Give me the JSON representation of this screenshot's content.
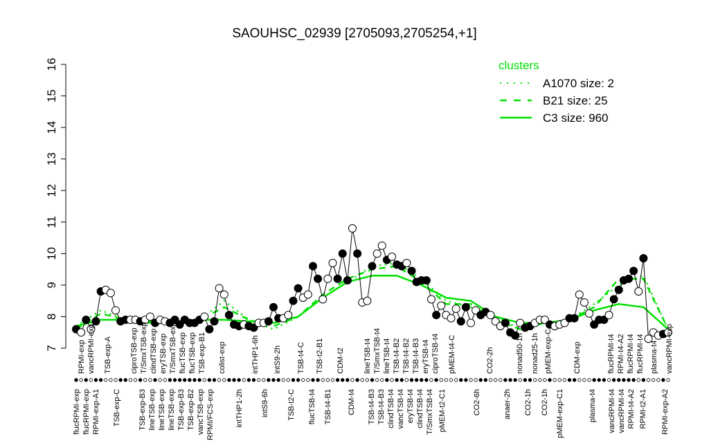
{
  "chart_data": {
    "type": "line",
    "title": "SAOUHSC_02939 [2705093,2705254,+1]",
    "xlabel": "",
    "ylabel": "",
    "ylim": [
      7,
      16
    ],
    "yticks": [
      "7",
      "8",
      "9",
      "10",
      "11",
      "12",
      "13",
      "14",
      "15",
      "16"
    ],
    "grid": false,
    "legend": {
      "title": "clusters",
      "placement": "top-right",
      "entries": [
        {
          "label": "A1070 size: 2",
          "style": "dotted"
        },
        {
          "label": "B21 size: 25",
          "style": "dashed"
        },
        {
          "label": "C3 size: 960",
          "style": "solid"
        }
      ]
    },
    "colors": {
      "cluster": "#00e000",
      "points": "#000000",
      "open": "#ffffff"
    },
    "points_note_fields": [
      "value",
      "filled"
    ],
    "points": [
      [
        7.6,
        1
      ],
      [
        7.5,
        0
      ],
      [
        7.9,
        1
      ],
      [
        7.6,
        0
      ],
      [
        7.85,
        1
      ],
      [
        8.8,
        1
      ],
      [
        8.85,
        0
      ],
      [
        8.75,
        0
      ],
      [
        8.2,
        0
      ],
      [
        7.85,
        1
      ],
      [
        7.9,
        1
      ],
      [
        7.9,
        0
      ],
      [
        7.9,
        0
      ],
      [
        7.85,
        1
      ],
      [
        7.9,
        0
      ],
      [
        8.0,
        0
      ],
      [
        7.8,
        1
      ],
      [
        7.9,
        0
      ],
      [
        7.85,
        0
      ],
      [
        7.8,
        1
      ],
      [
        7.9,
        1
      ],
      [
        7.75,
        1
      ],
      [
        7.9,
        1
      ],
      [
        7.8,
        1
      ],
      [
        7.8,
        1
      ],
      [
        7.9,
        1
      ],
      [
        8.0,
        0
      ],
      [
        7.6,
        1
      ],
      [
        7.85,
        1
      ],
      [
        8.9,
        0
      ],
      [
        8.7,
        0
      ],
      [
        8.05,
        1
      ],
      [
        7.75,
        1
      ],
      [
        7.7,
        1
      ],
      [
        7.75,
        0
      ],
      [
        7.7,
        1
      ],
      [
        7.65,
        1
      ],
      [
        7.8,
        0
      ],
      [
        7.8,
        0
      ],
      [
        7.85,
        1
      ],
      [
        8.3,
        1
      ],
      [
        7.95,
        1
      ],
      [
        7.95,
        0
      ],
      [
        8.05,
        0
      ],
      [
        8.5,
        1
      ],
      [
        8.9,
        1
      ],
      [
        8.6,
        0
      ],
      [
        8.7,
        0
      ],
      [
        9.6,
        1
      ],
      [
        9.2,
        1
      ],
      [
        8.55,
        0
      ],
      [
        9.2,
        0
      ],
      [
        9.7,
        0
      ],
      [
        9.2,
        1
      ],
      [
        10.0,
        1
      ],
      [
        9.15,
        1
      ],
      [
        10.8,
        0
      ],
      [
        10.0,
        1
      ],
      [
        8.45,
        0
      ],
      [
        8.5,
        0
      ],
      [
        9.6,
        1
      ],
      [
        10.0,
        0
      ],
      [
        10.25,
        0
      ],
      [
        9.8,
        1
      ],
      [
        9.9,
        0
      ],
      [
        9.65,
        1
      ],
      [
        9.6,
        1
      ],
      [
        9.7,
        0
      ],
      [
        9.45,
        1
      ],
      [
        9.1,
        1
      ],
      [
        9.15,
        1
      ],
      [
        9.15,
        1
      ],
      [
        8.55,
        0
      ],
      [
        8.05,
        1
      ],
      [
        8.35,
        0
      ],
      [
        8.05,
        0
      ],
      [
        7.95,
        0
      ],
      [
        8.25,
        0
      ],
      [
        7.85,
        1
      ],
      [
        8.3,
        1
      ],
      [
        7.8,
        0
      ],
      [
        8.2,
        0
      ],
      [
        8.05,
        1
      ],
      [
        8.15,
        1
      ],
      [
        8.05,
        0
      ],
      [
        7.85,
        0
      ],
      [
        7.7,
        0
      ],
      [
        7.8,
        1
      ],
      [
        7.5,
        1
      ],
      [
        7.4,
        1
      ],
      [
        7.8,
        0
      ],
      [
        7.65,
        1
      ],
      [
        7.7,
        1
      ],
      [
        7.8,
        0
      ],
      [
        7.9,
        0
      ],
      [
        7.9,
        0
      ],
      [
        7.75,
        1
      ],
      [
        7.7,
        0
      ],
      [
        7.75,
        0
      ],
      [
        7.8,
        0
      ],
      [
        7.95,
        1
      ],
      [
        7.95,
        1
      ],
      [
        8.7,
        0
      ],
      [
        8.45,
        0
      ],
      [
        8.1,
        0
      ],
      [
        7.75,
        1
      ],
      [
        7.9,
        1
      ],
      [
        7.9,
        1
      ],
      [
        8.05,
        0
      ],
      [
        8.55,
        1
      ],
      [
        8.85,
        1
      ],
      [
        9.15,
        1
      ],
      [
        9.2,
        1
      ],
      [
        9.45,
        1
      ],
      [
        8.8,
        0
      ],
      [
        9.85,
        1
      ],
      [
        7.3,
        0
      ],
      [
        7.5,
        0
      ],
      [
        7.4,
        0
      ],
      [
        7.45,
        1
      ],
      [
        7.5,
        0
      ]
    ],
    "series": [
      {
        "name": "C3 size: 960",
        "style": "solid",
        "values": [
          7.7,
          7.9,
          7.9,
          7.85,
          7.85,
          7.9,
          7.9,
          7.85,
          7.8,
          8.0,
          8.6,
          9.1,
          9.3,
          9.3,
          9.0,
          8.6,
          8.5,
          8.0,
          7.8,
          7.8,
          7.9,
          8.2,
          8.4,
          8.3,
          7.6
        ]
      },
      {
        "name": "B21 size: 25",
        "style": "dashed",
        "values": [
          7.6,
          8.1,
          7.9,
          7.8,
          7.8,
          7.9,
          8.3,
          7.9,
          7.7,
          8.0,
          8.7,
          9.2,
          9.5,
          9.6,
          9.1,
          8.4,
          8.4,
          7.9,
          7.6,
          7.8,
          7.9,
          8.3,
          9.2,
          9.2,
          7.6
        ]
      },
      {
        "name": "A1070 size: 2",
        "style": "dotted",
        "values": [
          7.7,
          8.2,
          7.9,
          7.8,
          7.8,
          7.9,
          8.5,
          7.9,
          7.6,
          8.0,
          8.6,
          9.1,
          9.6,
          9.7,
          9.2,
          8.5,
          8.3,
          8.0,
          7.6,
          7.8,
          7.9,
          8.4,
          9.0,
          9.3,
          7.6
        ]
      }
    ],
    "x_labels_top": [
      "RPMI-exp",
      "vancRPMI-exp",
      "TSB-exp-A",
      "ciproTSB-exp",
      "T/SmxTSB-exp",
      "clindTSB-exp",
      "eryTSB-exp",
      "T/SmxTSB-exp",
      "flucTSB-exp",
      "flucTSB-exp",
      "TSB-exp-B1",
      "colist-exp",
      "intTHP1-6h",
      "intS9-2h",
      "TSB-t4-C",
      "TSB-t2-B1",
      "CDM-t2",
      "lineTSB-t4",
      "T/SmxTSB-t4",
      "lineTSB-t4",
      "TSB-t4-B2",
      "TSB-t4-B2",
      "TSB-t4-B3",
      "eryTSB-t4",
      "ciproTSB-t4",
      "pMEM-t4-C",
      "CO2-2h",
      "nonad50-1h",
      "nonad25-1h",
      "pMEM-exp-C",
      "CDM-exp",
      "flucRPMI-t4",
      "RPMI-t4-A2",
      "flucRPMI-t4",
      "flucRPMI-t4",
      "plasma-t4",
      "vancRPMI-exp"
    ],
    "x_labels_bottom": [
      "flucRPMI-exp",
      "flucRPMI-exp",
      "RPMI-exp-A1",
      "TSB-exp-C",
      "TSB-exp-B3",
      "lineTSB-exp",
      "lineTSB-exp",
      "lineTSB-exp",
      "TSB-exp-B3",
      "TSB-exp-B2",
      "vancTSB-exp",
      "RPMI/FCS-exp",
      "intTHP1-2h",
      "intS9-6h",
      "TSB-t2-C",
      "flucTSB-t4",
      "TSB-t4-B1",
      "CDM-t4",
      "TSB-t4-B3",
      "TSB-t4-B3",
      "clindTSB-t4",
      "vancTSB-t4",
      "eryTSB-t4",
      "clindTSB-t4",
      "T/SmxTSB-t4",
      "pMEM-t2-C1",
      "CO2-6h",
      "anaer-2h",
      "CO2-1h",
      "CO2-1h",
      "pMEM-exp-C1",
      "plasma-t4",
      "vancRPMI-t4",
      "vancRPMI-t4",
      "RPMI-t4-A2",
      "RPMI-t2-A1",
      "RPMI-exp-A2"
    ]
  }
}
